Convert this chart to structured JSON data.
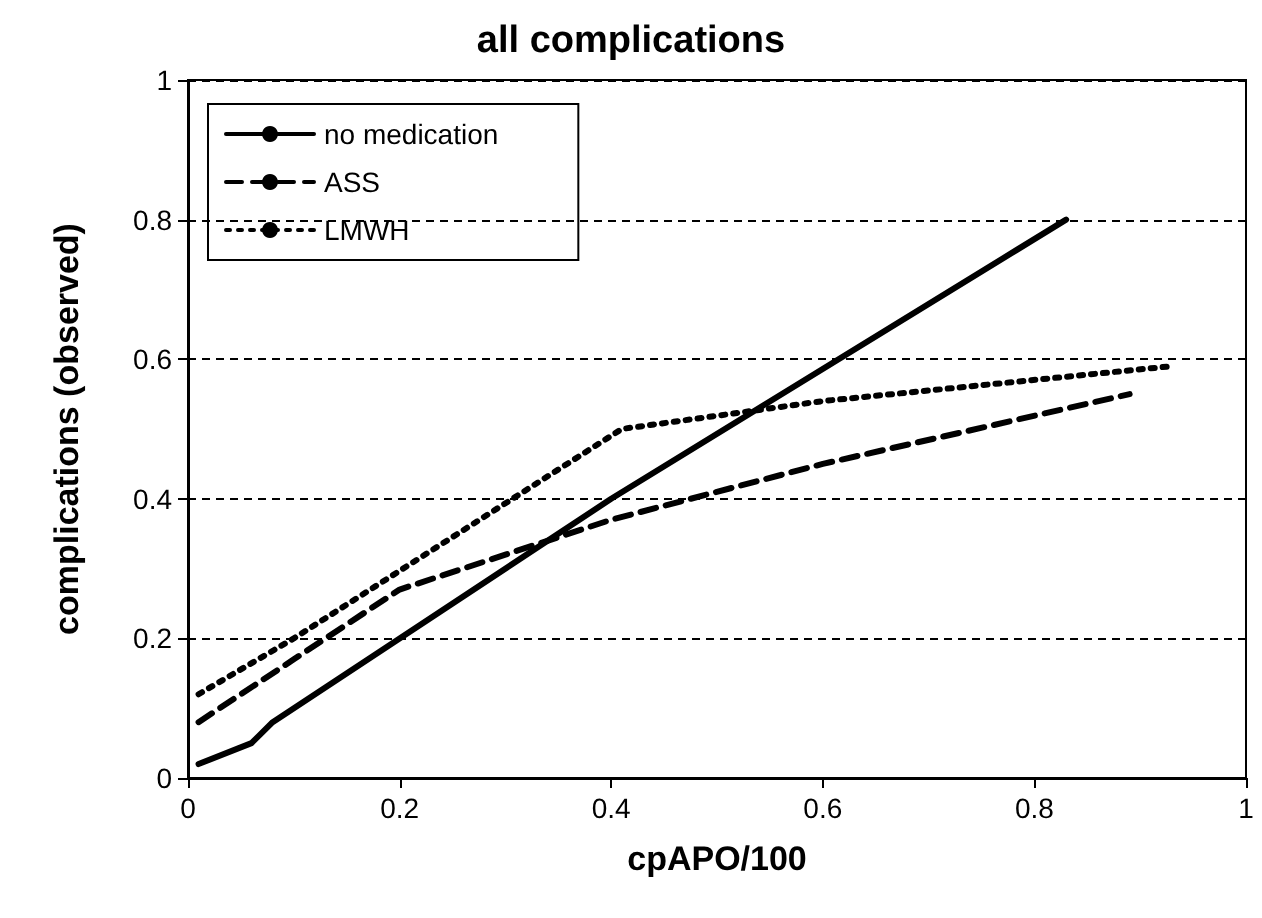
{
  "chart_data": {
    "type": "line",
    "title": "all complications",
    "xlabel": "cpAPO/100",
    "ylabel": "complications (observed)",
    "series": [
      {
        "name": "no medication",
        "color": "#000000",
        "line_style": "solid",
        "x": [
          0.01,
          0.06,
          0.08,
          0.2,
          0.4,
          0.83
        ],
        "values": [
          0.02,
          0.05,
          0.08,
          0.2,
          0.4,
          0.8
        ]
      },
      {
        "name": "ASS",
        "color": "#000000",
        "line_style": "dashed",
        "x": [
          0.01,
          0.1,
          0.2,
          0.3,
          0.4,
          0.6,
          0.89
        ],
        "values": [
          0.08,
          0.17,
          0.27,
          0.32,
          0.37,
          0.45,
          0.55
        ]
      },
      {
        "name": "LMWH",
        "color": "#000000",
        "line_style": "dotted",
        "x": [
          0.01,
          0.1,
          0.41,
          0.6,
          0.93
        ],
        "values": [
          0.12,
          0.2,
          0.5,
          0.54,
          0.59
        ]
      }
    ],
    "xlim": [
      0,
      1
    ],
    "xticks": [
      0,
      0.2,
      0.4,
      0.6,
      0.8,
      1
    ],
    "ylim": [
      0,
      1
    ],
    "yticks": [
      0,
      0.2,
      0.4,
      0.6,
      0.8,
      1
    ],
    "grid": "y",
    "legend": "top left",
    "marker": "none"
  }
}
